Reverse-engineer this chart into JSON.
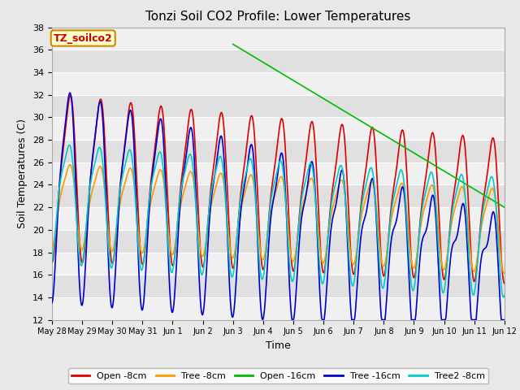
{
  "title": "Tonzi Soil CO2 Profile: Lower Temperatures",
  "xlabel": "Time",
  "ylabel": "Soil Temperatures (C)",
  "ylim": [
    12,
    38
  ],
  "yticks": [
    12,
    14,
    16,
    18,
    20,
    22,
    24,
    26,
    28,
    30,
    32,
    34,
    36,
    38
  ],
  "series": [
    {
      "label": "Open -8cm",
      "color": "#dd0000"
    },
    {
      "label": "Tree -8cm",
      "color": "#ff9900"
    },
    {
      "label": "Open -16cm",
      "color": "#00bb00"
    },
    {
      "label": "Tree -16cm",
      "color": "#0000cc"
    },
    {
      "label": "Tree2 -8cm",
      "color": "#00cccc"
    }
  ],
  "legend_title": "TZ_soilco2",
  "legend_title_color": "#cc0000",
  "legend_box_bg": "#ffffcc",
  "legend_box_edge": "#cc8800",
  "band_colors": [
    "#f0f0f0",
    "#e0e0e0"
  ],
  "fig_bg": "#e8e8e8"
}
